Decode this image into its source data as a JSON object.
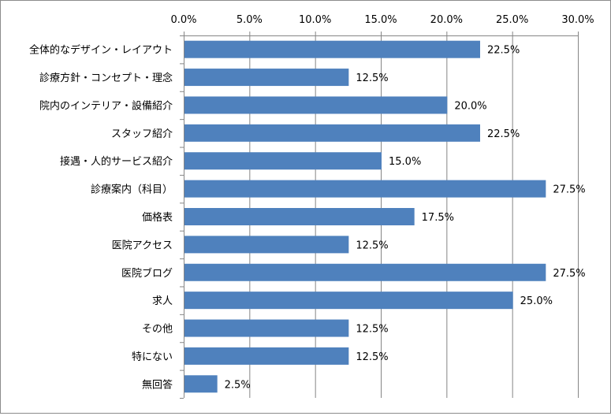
{
  "chart_data": {
    "type": "bar",
    "orientation": "horizontal",
    "categories": [
      "全体的なデザイン・レイアウト",
      "診療方針・コンセプト・理念",
      "院内のインテリア・設備紹介",
      "スタッフ紹介",
      "接遇・人的サービス紹介",
      "診療案内（科目）",
      "価格表",
      "医院アクセス",
      "医院ブログ",
      "求人",
      "その他",
      "特にない",
      "無回答"
    ],
    "values": [
      22.5,
      12.5,
      20.0,
      22.5,
      15.0,
      27.5,
      17.5,
      12.5,
      27.5,
      25.0,
      12.5,
      12.5,
      2.5
    ],
    "value_labels": [
      "22.5%",
      "12.5%",
      "20.0%",
      "22.5%",
      "15.0%",
      "27.5%",
      "17.5%",
      "12.5%",
      "27.5%",
      "25.0%",
      "12.5%",
      "12.5%",
      "2.5%"
    ],
    "xlim": [
      0,
      30
    ],
    "ticks": [
      0,
      5,
      10,
      15,
      20,
      25,
      30
    ],
    "tick_labels": [
      "0.0%",
      "5.0%",
      "10.0%",
      "15.0%",
      "20.0%",
      "25.0%",
      "30.0%"
    ],
    "axis_position": "top",
    "grid": true,
    "bar_color": "#4f81bd",
    "grid_color": "#868686",
    "title": "",
    "xlabel": "",
    "ylabel": ""
  }
}
